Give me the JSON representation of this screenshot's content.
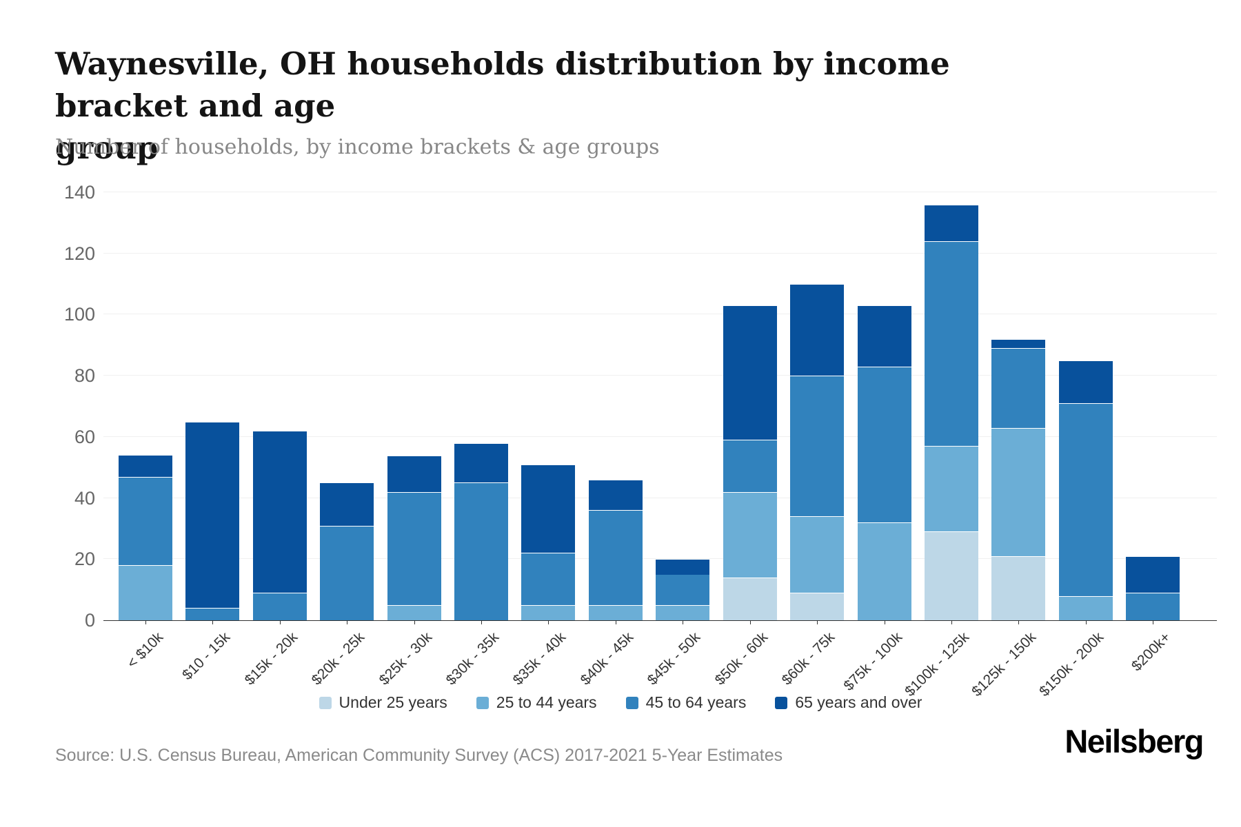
{
  "title": {
    "line1": "Waynesville, OH households distribution by income bracket and age",
    "line2": "group"
  },
  "subtitle": "Number of households, by income brackets & age groups",
  "source": "Source: U.S. Census Bureau, American Community Survey (ACS) 2017-2021 5-Year Estimates",
  "brand": "Neilsberg",
  "colors": {
    "axis": "#333333",
    "gridline": "#f0f0f0",
    "y_label": "#666666",
    "x_label": "#333333"
  },
  "chart_data": {
    "type": "bar",
    "stacked": true,
    "grid": true,
    "legend_position": "bottom",
    "ylim": [
      0,
      140
    ],
    "yticks": [
      0,
      20,
      40,
      60,
      80,
      100,
      120,
      140
    ],
    "categories": [
      "< $10k",
      "$10 - 15k",
      "$15k - 20k",
      "$20k - 25k",
      "$25k - 30k",
      "$30k - 35k",
      "$35k - 40k",
      "$40k - 45k",
      "$45k - 50k",
      "$50k - 60k",
      "$60k - 75k",
      "$75k - 100k",
      "$100k - 125k",
      "$125k - 150k",
      "$150k - 200k",
      "$200k+"
    ],
    "series": [
      {
        "name": "Under 25 years",
        "color": "#bdd7e7",
        "values": [
          0,
          0,
          0,
          0,
          0,
          0,
          0,
          0,
          0,
          14,
          9,
          0,
          29,
          21,
          0,
          0
        ]
      },
      {
        "name": "25 to 44 years",
        "color": "#6baed6",
        "values": [
          18,
          0,
          0,
          0,
          5,
          0,
          5,
          5,
          5,
          28,
          25,
          32,
          28,
          42,
          8,
          0
        ]
      },
      {
        "name": "45 to 64 years",
        "color": "#3182bd",
        "values": [
          29,
          4,
          9,
          31,
          37,
          45,
          17,
          31,
          10,
          17,
          46,
          51,
          67,
          26,
          63,
          9
        ]
      },
      {
        "name": "65 years and over",
        "color": "#08519c",
        "values": [
          7,
          61,
          53,
          14,
          12,
          13,
          29,
          10,
          5,
          44,
          30,
          20,
          12,
          3,
          14,
          12
        ]
      }
    ],
    "totals": [
      54,
      65,
      62,
      45,
      54,
      58,
      51,
      46,
      20,
      103,
      110,
      103,
      136,
      92,
      85,
      21
    ],
    "xlabel": "",
    "ylabel": ""
  }
}
